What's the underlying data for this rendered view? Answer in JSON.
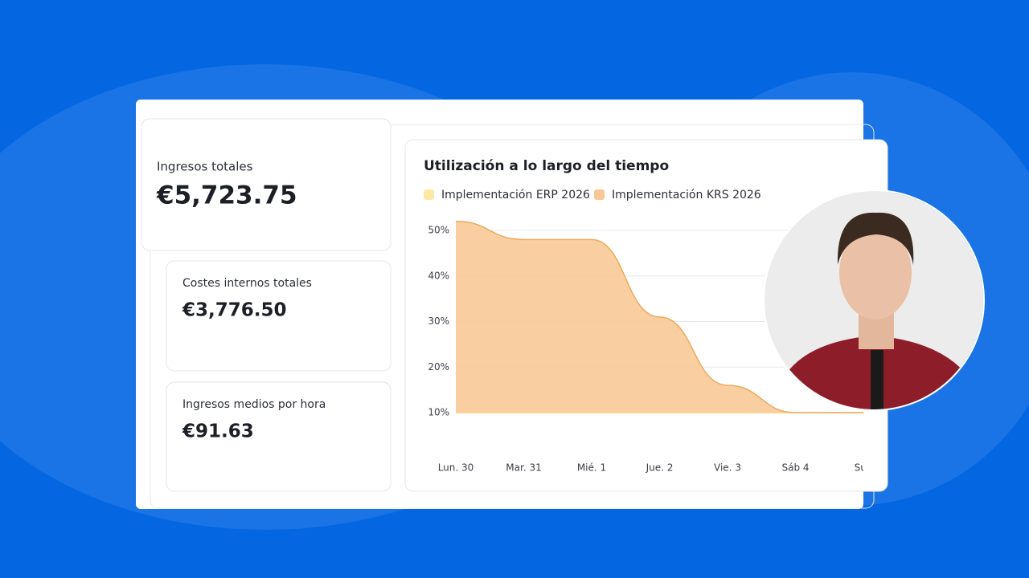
{
  "stats": [
    {
      "label": "Ingresos totales",
      "value": "€5,723.75"
    },
    {
      "label": "Costes internos totales",
      "value": "€3,776.50"
    },
    {
      "label": "Ingresos medios por hora",
      "value": "€91.63"
    }
  ],
  "chart_data": {
    "type": "area",
    "title": "Utilización a lo largo del tiempo",
    "categories": [
      "Lun. 30",
      "Mar. 31",
      "Mié. 1",
      "Jue. 2",
      "Vie. 3",
      "Sáb 4",
      "Sun"
    ],
    "series": [
      {
        "name": "Implementación ERP 2026",
        "color": "#fde9a4",
        "values": [
          10,
          10,
          10,
          10,
          10,
          10,
          10
        ]
      },
      {
        "name": "Implementación KRS 2026",
        "color": "#f8c997",
        "values": [
          52,
          48,
          48,
          31,
          16,
          10,
          10
        ]
      }
    ],
    "ylim": [
      10,
      52
    ],
    "yticks": [
      {
        "value": 10,
        "label": "10%"
      },
      {
        "value": 20,
        "label": "20%"
      },
      {
        "value": 30,
        "label": "30%"
      },
      {
        "value": 40,
        "label": "40%"
      },
      {
        "value": 50,
        "label": "50%"
      }
    ],
    "grid": true
  }
}
